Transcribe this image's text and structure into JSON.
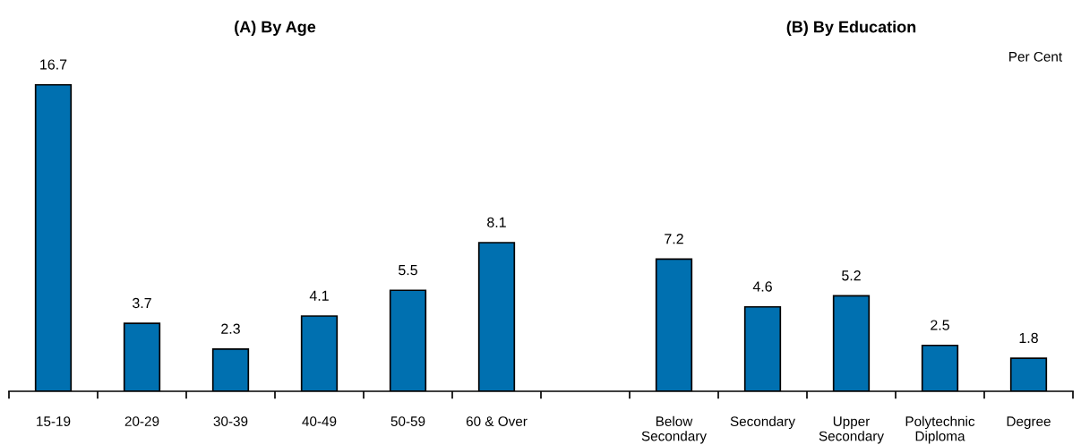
{
  "chart_data": {
    "type": "bar",
    "ylabel": "Per Cent",
    "annotations": [
      "(A) By Age",
      "(B) By Education"
    ],
    "categories": [
      "15-19",
      "20-29",
      "30-39",
      "40-49",
      "50-59",
      "60 & Over",
      null,
      "Below Secondary",
      "Secondary",
      "Upper Secondary",
      "Polytechnic Diploma",
      "Degree"
    ],
    "values": [
      16.7,
      3.7,
      2.3,
      4.1,
      5.5,
      8.1,
      null,
      7.2,
      4.6,
      5.2,
      2.5,
      1.8
    ],
    "color": "#0070b0",
    "data_labels": true
  }
}
